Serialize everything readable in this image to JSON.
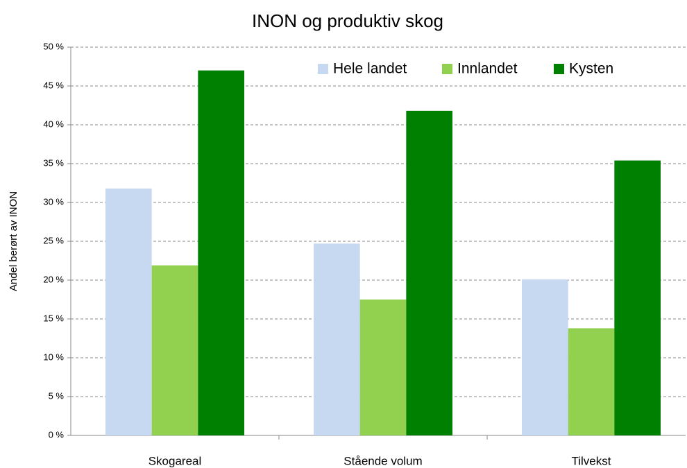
{
  "chart_data": {
    "type": "bar",
    "title": "INON og produktiv skog",
    "y_label": "Andel berørt av INON",
    "categories": [
      "Skogareal",
      "Stående volum",
      "Tilvekst"
    ],
    "series": [
      {
        "name": "Hele landet",
        "color": "#c6d9f1",
        "values": [
          31.8,
          24.7,
          20.1
        ]
      },
      {
        "name": "Innlandet",
        "color": "#92d050",
        "values": [
          21.9,
          17.5,
          13.8
        ]
      },
      {
        "name": "Kysten",
        "color": "#008000",
        "values": [
          47.0,
          41.8,
          35.4
        ]
      }
    ],
    "ylim": [
      0,
      50
    ],
    "yticks": [
      {
        "value": 0,
        "label": "0 %"
      },
      {
        "value": 5,
        "label": "5 %"
      },
      {
        "value": 10,
        "label": "10 %"
      },
      {
        "value": 15,
        "label": "15 %"
      },
      {
        "value": 20,
        "label": "20 %"
      },
      {
        "value": 25,
        "label": "25 %"
      },
      {
        "value": 30,
        "label": "30 %"
      },
      {
        "value": 35,
        "label": "35 %"
      },
      {
        "value": 40,
        "label": "40 %"
      },
      {
        "value": 45,
        "label": "45 %"
      },
      {
        "value": 50,
        "label": "50 %"
      }
    ],
    "grid": true,
    "legend": "top-right"
  }
}
